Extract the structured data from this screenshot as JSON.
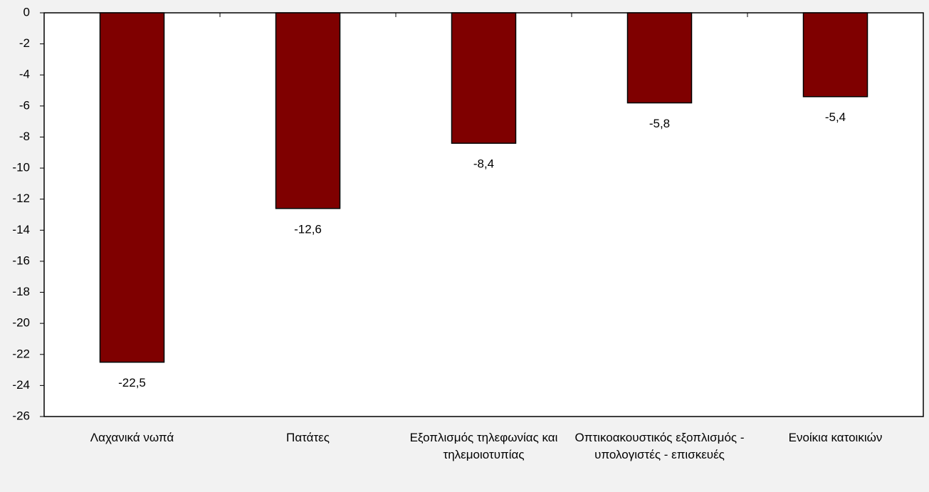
{
  "chart_data": {
    "type": "bar",
    "categories": [
      "Λαχανικά νωπά",
      "Πατάτες",
      "Εξοπλισμός τηλεφωνίας και τηλεμοιοτυπίας",
      "Οπτικοακουστικός εξοπλισμός - υπολογιστές - επισκευές",
      "Ενοίκια κατοικιών"
    ],
    "values": [
      -22.5,
      -12.6,
      -8.4,
      -5.8,
      -5.4
    ],
    "value_labels": [
      "-22,5",
      "-12,6",
      "-8,4",
      "-5,8",
      "-5,4"
    ],
    "color": "#7f0000",
    "ylim": [
      -26,
      0
    ],
    "yticks": [
      0,
      -2,
      -4,
      -6,
      -8,
      -10,
      -12,
      -14,
      -16,
      -18,
      -20,
      -22,
      -24,
      -26
    ]
  }
}
